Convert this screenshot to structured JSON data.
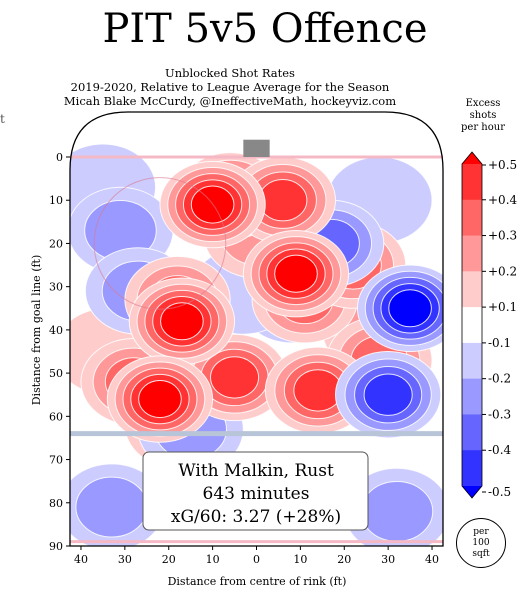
{
  "header": {
    "title": "PIT 5v5 Offence",
    "subtitle_1": "Unblocked Shot Rates",
    "subtitle_2": "2019-2020, Relative to League Average for the Season",
    "subtitle_3": "Micah Blake McCurdy, @IneffectiveMath, hockeyviz.com",
    "stray_char": "t"
  },
  "legend": {
    "title_line1": "Excess",
    "title_line2": "shots",
    "title_line3": "per hour",
    "ticks": [
      "+0.5",
      "+0.4",
      "+0.3",
      "+0.2",
      "+0.1",
      "-0.1",
      "-0.2",
      "-0.3",
      "-0.4",
      "-0.5"
    ],
    "colors": [
      "#ff0000",
      "#ff3333",
      "#ff6666",
      "#ff9999",
      "#ffcccc",
      "#ffffff",
      "#ccccff",
      "#9999ff",
      "#6666ff",
      "#3333ff",
      "#0000ff"
    ]
  },
  "per_badge": {
    "line1": "per",
    "line2": "100",
    "line3": "sqft"
  },
  "info_box": {
    "line1": "With Malkin, Rust",
    "line2": "643 minutes",
    "line3": "xG/60: 3.27 (+28%)"
  },
  "chart_data": {
    "type": "heatmap",
    "title": "PIT 5v5 Offence",
    "xlabel": "Distance from centre of rink (ft)",
    "ylabel": "Distance from goal line (ft)",
    "xlim": [
      42.5,
      -42.5
    ],
    "ylim": [
      0,
      90
    ],
    "xticks": [
      40,
      30,
      20,
      10,
      0,
      10,
      20,
      30,
      40
    ],
    "yticks": [
      0,
      10,
      20,
      30,
      40,
      50,
      60,
      70,
      80,
      90
    ],
    "colorbar_range": [
      -0.5,
      0.5
    ],
    "blobs": [
      {
        "x": 10,
        "y": 11,
        "value": 0.5
      },
      {
        "x": 6,
        "y": 9,
        "value": 0.4
      },
      {
        "x": -6,
        "y": 10,
        "value": 0.4
      },
      {
        "x": 17,
        "y": 38,
        "value": 0.5
      },
      {
        "x": 18,
        "y": 33,
        "value": 0.3
      },
      {
        "x": -9,
        "y": 27,
        "value": 0.5
      },
      {
        "x": -11,
        "y": 33,
        "value": 0.3
      },
      {
        "x": 22,
        "y": 56,
        "value": 0.5
      },
      {
        "x": 28,
        "y": 52,
        "value": 0.3
      },
      {
        "x": 5,
        "y": 51,
        "value": 0.4
      },
      {
        "x": -14,
        "y": 54,
        "value": 0.4
      },
      {
        "x": -22,
        "y": 25,
        "value": 0.3
      },
      {
        "x": -27,
        "y": 40,
        "value": 0.2
      },
      {
        "x": -28,
        "y": 47,
        "value": 0.3
      },
      {
        "x": 34,
        "y": 45,
        "value": 0.1
      },
      {
        "x": 18,
        "y": 62,
        "value": 0.1
      },
      {
        "x": 0,
        "y": 18,
        "value": 0.2
      },
      {
        "x": -17,
        "y": 20,
        "value": -0.3
      },
      {
        "x": -35,
        "y": 35,
        "value": -0.5
      },
      {
        "x": -30,
        "y": 55,
        "value": -0.4
      },
      {
        "x": 31,
        "y": 17,
        "value": -0.2
      },
      {
        "x": 35,
        "y": 7,
        "value": -0.1
      },
      {
        "x": 27,
        "y": 31,
        "value": -0.2
      },
      {
        "x": -28,
        "y": 10,
        "value": -0.1
      },
      {
        "x": -8,
        "y": 33,
        "value": -0.1
      },
      {
        "x": 3,
        "y": 31,
        "value": -0.1
      },
      {
        "x": 33,
        "y": 81,
        "value": -0.2
      },
      {
        "x": -32,
        "y": 82,
        "value": -0.2
      },
      {
        "x": 15,
        "y": 63,
        "value": -0.2
      }
    ]
  }
}
